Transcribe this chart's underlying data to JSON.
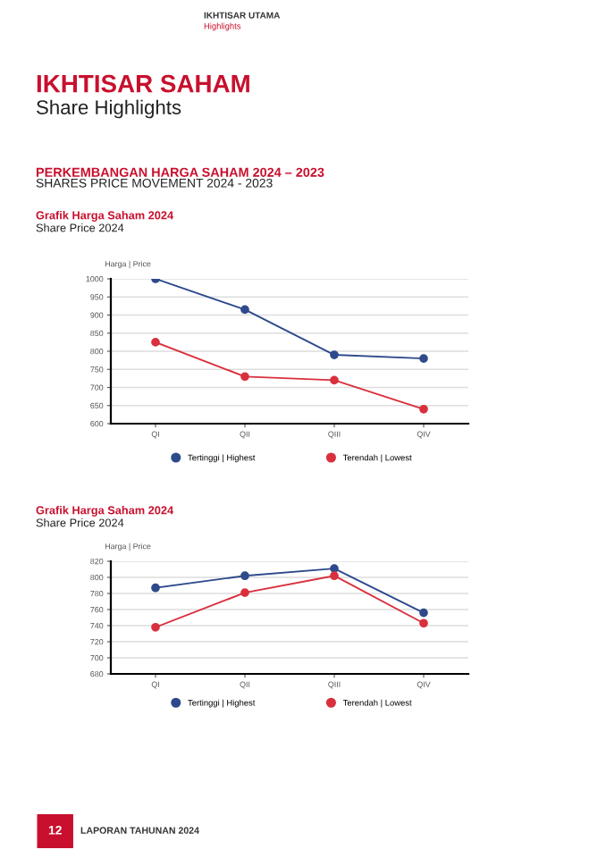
{
  "chart_data": [
    {
      "type": "line",
      "title": "Grafik Harga Saham 2024",
      "subtitle": "Share Price 2024",
      "ylabel": "Harga | Price",
      "annotations": [
        "IKHTISAR UTAMA",
        "Highlights",
        "IKHTISAR SAHAM",
        "Share Highlights",
        "PERKEMBANGAN HARGA SAHAM 2024 – 2023",
        "SHARES PRICE MOVEMENT 2024 - 2023",
        "12",
        "LAPORAN TAHUNAN 2024"
      ],
      "categories": [
        "QI",
        "QII",
        "QIII",
        "QIV"
      ],
      "series": [
        {
          "name": "Tertinggi | Highest",
          "color": "#2e4a8c",
          "values": [
            1000,
            915,
            790,
            780
          ]
        },
        {
          "name": "Terendah | Lowest",
          "color": "#d9303e",
          "values": [
            825,
            730,
            720,
            640
          ]
        }
      ],
      "ylim": [
        600,
        1000
      ],
      "yticks": [
        600,
        650,
        700,
        750,
        800,
        850,
        900,
        950,
        1000
      ],
      "grid": "y",
      "legend": "bottom",
      "marker": "circle",
      "line_style": "solid"
    },
    {
      "type": "line",
      "title": "Grafik Harga Saham 2024",
      "subtitle": "Share Price 2024",
      "ylabel": "Harga | Price",
      "categories": [
        "QI",
        "QII",
        "QIII",
        "QIV"
      ],
      "series": [
        {
          "name": "Tertinggi | Highest",
          "color": "#2e4a8c",
          "values": [
            787,
            802,
            811,
            756
          ]
        },
        {
          "name": "Terendah | Lowest",
          "color": "#d9303e",
          "values": [
            738,
            781,
            802,
            743
          ]
        }
      ],
      "ylim": [
        680,
        820
      ],
      "yticks": [
        680,
        700,
        720,
        740,
        760,
        780,
        800,
        820
      ],
      "grid": "y",
      "legend": "bottom",
      "marker": "circle",
      "line_style": "solid"
    }
  ]
}
